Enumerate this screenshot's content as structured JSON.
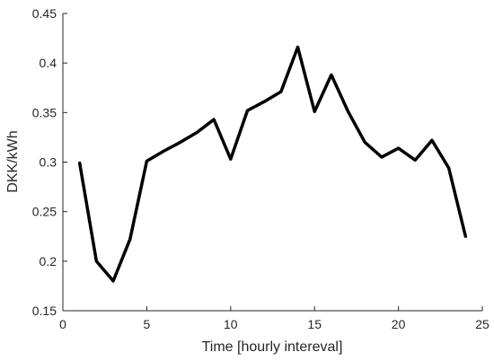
{
  "chart_data": {
    "type": "line",
    "title": "",
    "xlabel": "Time [hourly intereval]",
    "ylabel": "DKK/kWh",
    "xlim": [
      0,
      25
    ],
    "ylim": [
      0.15,
      0.45
    ],
    "xticks": [
      0,
      5,
      10,
      15,
      20,
      25
    ],
    "yticks": [
      0.15,
      0.2,
      0.25,
      0.3,
      0.35,
      0.4,
      0.45
    ],
    "xtick_labels": [
      "0",
      "5",
      "10",
      "15",
      "20",
      "25"
    ],
    "ytick_labels": [
      "0.15",
      "0.2",
      "0.25",
      "0.3",
      "0.35",
      "0.4",
      "0.45"
    ],
    "grid": false,
    "series": [
      {
        "color": "#000000",
        "x": [
          1,
          2,
          3,
          4,
          5,
          6,
          7,
          8,
          9,
          10,
          11,
          12,
          13,
          14,
          15,
          16,
          17,
          18,
          19,
          20,
          21,
          22,
          23,
          24
        ],
        "y": [
          0.299,
          0.2,
          0.18,
          0.222,
          0.301,
          0.311,
          0.32,
          0.33,
          0.343,
          0.303,
          0.352,
          0.361,
          0.371,
          0.416,
          0.351,
          0.388,
          0.351,
          0.32,
          0.305,
          0.314,
          0.302,
          0.322,
          0.294,
          0.225
        ]
      }
    ]
  }
}
